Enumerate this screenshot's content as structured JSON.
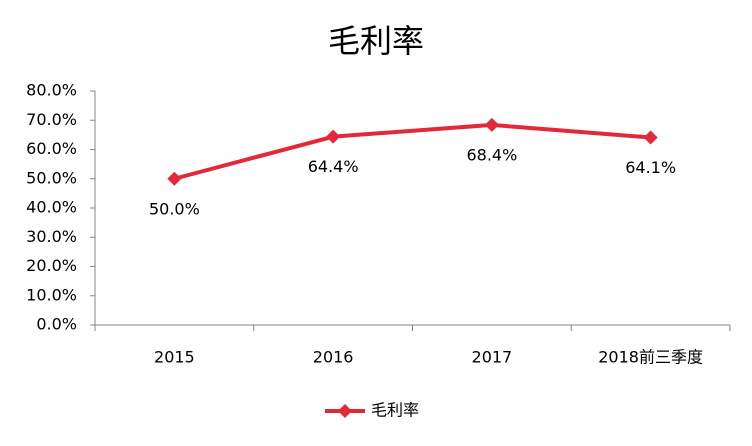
{
  "chart_data": {
    "type": "line",
    "title": "毛利率",
    "categories": [
      "2015",
      "2016",
      "2017",
      "2018前三季度"
    ],
    "series": [
      {
        "name": "毛利率",
        "color": "#e3283a",
        "values": [
          50.0,
          64.4,
          68.4,
          64.1
        ],
        "value_labels": [
          "50.0%",
          "64.4%",
          "68.4%",
          "64.1%"
        ]
      }
    ],
    "ylim": [
      0,
      80
    ],
    "yticks": [
      {
        "value": 0,
        "label": "0.0%"
      },
      {
        "value": 10,
        "label": "10.0%"
      },
      {
        "value": 20,
        "label": "20.0%"
      },
      {
        "value": 30,
        "label": "30.0%"
      },
      {
        "value": 40,
        "label": "40.0%"
      },
      {
        "value": 50,
        "label": "50.0%"
      },
      {
        "value": 60,
        "label": "60.0%"
      },
      {
        "value": 70,
        "label": "70.0%"
      },
      {
        "value": 80,
        "label": "80.0%"
      }
    ],
    "grid": false,
    "legend": "bottom"
  }
}
